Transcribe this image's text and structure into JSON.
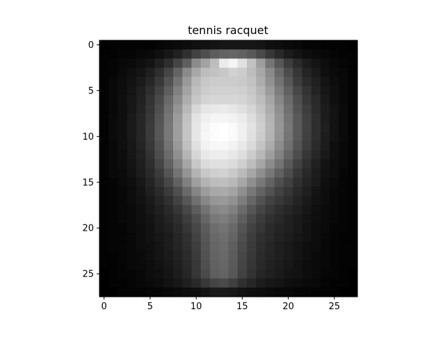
{
  "chart_data": {
    "type": "heatmap",
    "title": "tennis racquet",
    "colormap": "gray",
    "origin": "upper",
    "rows": 28,
    "cols": 28,
    "xlim": [
      -0.5,
      27.5
    ],
    "ylim": [
      27.5,
      -0.5
    ],
    "x_ticks": [
      0,
      5,
      10,
      15,
      20,
      25
    ],
    "y_ticks": [
      0,
      5,
      10,
      15,
      20,
      25
    ],
    "x_tick_labels": [
      "0",
      "5",
      "10",
      "15",
      "20",
      "25"
    ],
    "y_tick_labels": [
      "0",
      "5",
      "10",
      "15",
      "20",
      "25"
    ],
    "value_range": [
      0,
      1
    ],
    "grid": false,
    "values": [
      [
        0.0,
        0.01,
        0.01,
        0.01,
        0.01,
        0.01,
        0.02,
        0.03,
        0.04,
        0.05,
        0.06,
        0.07,
        0.08,
        0.09,
        0.09,
        0.09,
        0.09,
        0.08,
        0.06,
        0.05,
        0.04,
        0.03,
        0.02,
        0.02,
        0.01,
        0.01,
        0.01,
        0.0
      ],
      [
        0.01,
        0.01,
        0.02,
        0.02,
        0.03,
        0.04,
        0.06,
        0.09,
        0.13,
        0.19,
        0.26,
        0.31,
        0.36,
        0.39,
        0.4,
        0.38,
        0.35,
        0.29,
        0.22,
        0.16,
        0.11,
        0.08,
        0.05,
        0.04,
        0.03,
        0.02,
        0.01,
        0.01
      ],
      [
        0.01,
        0.02,
        0.03,
        0.04,
        0.06,
        0.08,
        0.12,
        0.18,
        0.27,
        0.37,
        0.55,
        0.64,
        0.74,
        0.92,
        0.96,
        0.88,
        0.76,
        0.62,
        0.46,
        0.34,
        0.24,
        0.17,
        0.11,
        0.08,
        0.05,
        0.03,
        0.02,
        0.01
      ],
      [
        0.01,
        0.02,
        0.04,
        0.06,
        0.08,
        0.12,
        0.18,
        0.27,
        0.39,
        0.54,
        0.66,
        0.74,
        0.76,
        0.78,
        0.82,
        0.8,
        0.74,
        0.66,
        0.54,
        0.41,
        0.3,
        0.21,
        0.14,
        0.1,
        0.06,
        0.04,
        0.03,
        0.01
      ],
      [
        0.01,
        0.03,
        0.05,
        0.07,
        0.1,
        0.15,
        0.22,
        0.32,
        0.45,
        0.6,
        0.72,
        0.78,
        0.8,
        0.8,
        0.8,
        0.79,
        0.76,
        0.68,
        0.57,
        0.45,
        0.34,
        0.24,
        0.17,
        0.12,
        0.08,
        0.05,
        0.03,
        0.01
      ],
      [
        0.01,
        0.03,
        0.05,
        0.08,
        0.12,
        0.18,
        0.26,
        0.37,
        0.5,
        0.64,
        0.75,
        0.8,
        0.82,
        0.82,
        0.82,
        0.81,
        0.78,
        0.71,
        0.61,
        0.49,
        0.38,
        0.28,
        0.2,
        0.14,
        0.09,
        0.06,
        0.03,
        0.01
      ],
      [
        0.01,
        0.03,
        0.06,
        0.09,
        0.13,
        0.2,
        0.29,
        0.41,
        0.54,
        0.68,
        0.78,
        0.83,
        0.84,
        0.84,
        0.84,
        0.83,
        0.8,
        0.74,
        0.65,
        0.53,
        0.42,
        0.31,
        0.22,
        0.16,
        0.1,
        0.06,
        0.03,
        0.01
      ],
      [
        0.01,
        0.03,
        0.06,
        0.09,
        0.14,
        0.21,
        0.31,
        0.44,
        0.58,
        0.72,
        0.84,
        0.9,
        0.91,
        0.92,
        0.9,
        0.88,
        0.84,
        0.77,
        0.68,
        0.56,
        0.44,
        0.33,
        0.24,
        0.17,
        0.11,
        0.07,
        0.04,
        0.01
      ],
      [
        0.01,
        0.04,
        0.06,
        0.1,
        0.15,
        0.22,
        0.33,
        0.46,
        0.61,
        0.76,
        0.89,
        0.94,
        0.96,
        0.96,
        0.95,
        0.92,
        0.87,
        0.8,
        0.7,
        0.58,
        0.46,
        0.35,
        0.25,
        0.18,
        0.11,
        0.07,
        0.04,
        0.01
      ],
      [
        0.01,
        0.04,
        0.06,
        0.1,
        0.15,
        0.23,
        0.34,
        0.47,
        0.62,
        0.77,
        0.9,
        0.96,
        0.99,
        1.0,
        0.98,
        0.94,
        0.89,
        0.81,
        0.71,
        0.59,
        0.47,
        0.35,
        0.26,
        0.18,
        0.12,
        0.07,
        0.04,
        0.01
      ],
      [
        0.01,
        0.04,
        0.06,
        0.1,
        0.15,
        0.23,
        0.34,
        0.47,
        0.62,
        0.77,
        0.9,
        0.97,
        0.99,
        1.0,
        0.98,
        0.94,
        0.88,
        0.8,
        0.7,
        0.58,
        0.46,
        0.35,
        0.25,
        0.18,
        0.11,
        0.07,
        0.04,
        0.01
      ],
      [
        0.01,
        0.03,
        0.06,
        0.09,
        0.14,
        0.22,
        0.32,
        0.45,
        0.6,
        0.75,
        0.88,
        0.95,
        0.97,
        0.97,
        0.95,
        0.91,
        0.85,
        0.77,
        0.67,
        0.55,
        0.44,
        0.33,
        0.24,
        0.17,
        0.11,
        0.06,
        0.03,
        0.01
      ],
      [
        0.01,
        0.03,
        0.05,
        0.09,
        0.13,
        0.2,
        0.3,
        0.42,
        0.56,
        0.71,
        0.84,
        0.91,
        0.93,
        0.93,
        0.91,
        0.87,
        0.8,
        0.72,
        0.62,
        0.51,
        0.4,
        0.3,
        0.21,
        0.15,
        0.1,
        0.06,
        0.03,
        0.01
      ],
      [
        0.01,
        0.03,
        0.05,
        0.08,
        0.12,
        0.18,
        0.27,
        0.38,
        0.51,
        0.65,
        0.78,
        0.86,
        0.88,
        0.88,
        0.86,
        0.81,
        0.74,
        0.65,
        0.55,
        0.45,
        0.35,
        0.26,
        0.19,
        0.13,
        0.08,
        0.05,
        0.03,
        0.01
      ],
      [
        0.01,
        0.03,
        0.04,
        0.07,
        0.11,
        0.16,
        0.23,
        0.33,
        0.45,
        0.58,
        0.7,
        0.78,
        0.81,
        0.82,
        0.79,
        0.73,
        0.65,
        0.56,
        0.47,
        0.38,
        0.3,
        0.22,
        0.16,
        0.11,
        0.07,
        0.05,
        0.02,
        0.01
      ],
      [
        0.01,
        0.02,
        0.04,
        0.06,
        0.09,
        0.14,
        0.2,
        0.28,
        0.38,
        0.5,
        0.62,
        0.7,
        0.74,
        0.75,
        0.72,
        0.65,
        0.56,
        0.47,
        0.39,
        0.31,
        0.25,
        0.19,
        0.14,
        0.1,
        0.06,
        0.04,
        0.02,
        0.01
      ],
      [
        0.01,
        0.02,
        0.03,
        0.05,
        0.08,
        0.12,
        0.17,
        0.23,
        0.31,
        0.41,
        0.52,
        0.61,
        0.66,
        0.67,
        0.64,
        0.56,
        0.47,
        0.39,
        0.32,
        0.26,
        0.21,
        0.16,
        0.12,
        0.08,
        0.05,
        0.03,
        0.02,
        0.01
      ],
      [
        0.01,
        0.02,
        0.03,
        0.05,
        0.07,
        0.1,
        0.14,
        0.19,
        0.26,
        0.34,
        0.44,
        0.53,
        0.59,
        0.6,
        0.57,
        0.49,
        0.4,
        0.32,
        0.26,
        0.22,
        0.18,
        0.14,
        0.1,
        0.07,
        0.05,
        0.03,
        0.02,
        0.01
      ],
      [
        0.01,
        0.02,
        0.03,
        0.04,
        0.06,
        0.09,
        0.12,
        0.16,
        0.21,
        0.28,
        0.36,
        0.45,
        0.52,
        0.54,
        0.5,
        0.42,
        0.34,
        0.27,
        0.22,
        0.18,
        0.15,
        0.12,
        0.09,
        0.06,
        0.04,
        0.03,
        0.02,
        0.01
      ],
      [
        0.01,
        0.02,
        0.03,
        0.04,
        0.06,
        0.08,
        0.11,
        0.14,
        0.18,
        0.24,
        0.31,
        0.4,
        0.47,
        0.49,
        0.45,
        0.37,
        0.29,
        0.23,
        0.19,
        0.16,
        0.13,
        0.1,
        0.08,
        0.06,
        0.04,
        0.03,
        0.02,
        0.01
      ],
      [
        0.01,
        0.02,
        0.02,
        0.04,
        0.05,
        0.07,
        0.1,
        0.12,
        0.16,
        0.21,
        0.28,
        0.36,
        0.43,
        0.45,
        0.41,
        0.33,
        0.26,
        0.21,
        0.17,
        0.14,
        0.12,
        0.1,
        0.07,
        0.05,
        0.04,
        0.02,
        0.02,
        0.01
      ],
      [
        0.01,
        0.02,
        0.02,
        0.03,
        0.05,
        0.07,
        0.09,
        0.11,
        0.15,
        0.19,
        0.26,
        0.34,
        0.41,
        0.43,
        0.39,
        0.31,
        0.24,
        0.19,
        0.16,
        0.13,
        0.11,
        0.09,
        0.07,
        0.05,
        0.03,
        0.02,
        0.01,
        0.01
      ],
      [
        0.01,
        0.02,
        0.02,
        0.03,
        0.05,
        0.06,
        0.08,
        0.11,
        0.14,
        0.18,
        0.24,
        0.33,
        0.4,
        0.42,
        0.37,
        0.29,
        0.23,
        0.18,
        0.15,
        0.12,
        0.1,
        0.08,
        0.06,
        0.05,
        0.03,
        0.02,
        0.01,
        0.01
      ],
      [
        0.01,
        0.01,
        0.02,
        0.03,
        0.04,
        0.06,
        0.08,
        0.1,
        0.13,
        0.17,
        0.23,
        0.32,
        0.39,
        0.41,
        0.36,
        0.28,
        0.22,
        0.17,
        0.14,
        0.12,
        0.1,
        0.08,
        0.06,
        0.04,
        0.03,
        0.02,
        0.01,
        0.01
      ],
      [
        0.01,
        0.01,
        0.02,
        0.03,
        0.04,
        0.05,
        0.07,
        0.09,
        0.12,
        0.16,
        0.22,
        0.31,
        0.38,
        0.4,
        0.35,
        0.27,
        0.21,
        0.16,
        0.13,
        0.11,
        0.09,
        0.07,
        0.05,
        0.04,
        0.03,
        0.02,
        0.01,
        0.01
      ],
      [
        0.0,
        0.01,
        0.02,
        0.02,
        0.03,
        0.05,
        0.06,
        0.08,
        0.11,
        0.15,
        0.21,
        0.29,
        0.37,
        0.39,
        0.34,
        0.26,
        0.2,
        0.15,
        0.12,
        0.1,
        0.08,
        0.07,
        0.05,
        0.04,
        0.02,
        0.02,
        0.01,
        0.0
      ],
      [
        0.0,
        0.01,
        0.01,
        0.02,
        0.03,
        0.04,
        0.05,
        0.07,
        0.09,
        0.12,
        0.16,
        0.22,
        0.27,
        0.29,
        0.25,
        0.19,
        0.15,
        0.11,
        0.09,
        0.08,
        0.06,
        0.05,
        0.04,
        0.03,
        0.02,
        0.01,
        0.01,
        0.0
      ],
      [
        0.0,
        0.0,
        0.01,
        0.01,
        0.01,
        0.02,
        0.02,
        0.03,
        0.04,
        0.05,
        0.06,
        0.08,
        0.1,
        0.1,
        0.09,
        0.07,
        0.06,
        0.05,
        0.04,
        0.03,
        0.03,
        0.02,
        0.02,
        0.01,
        0.01,
        0.01,
        0.0,
        0.0
      ]
    ]
  }
}
